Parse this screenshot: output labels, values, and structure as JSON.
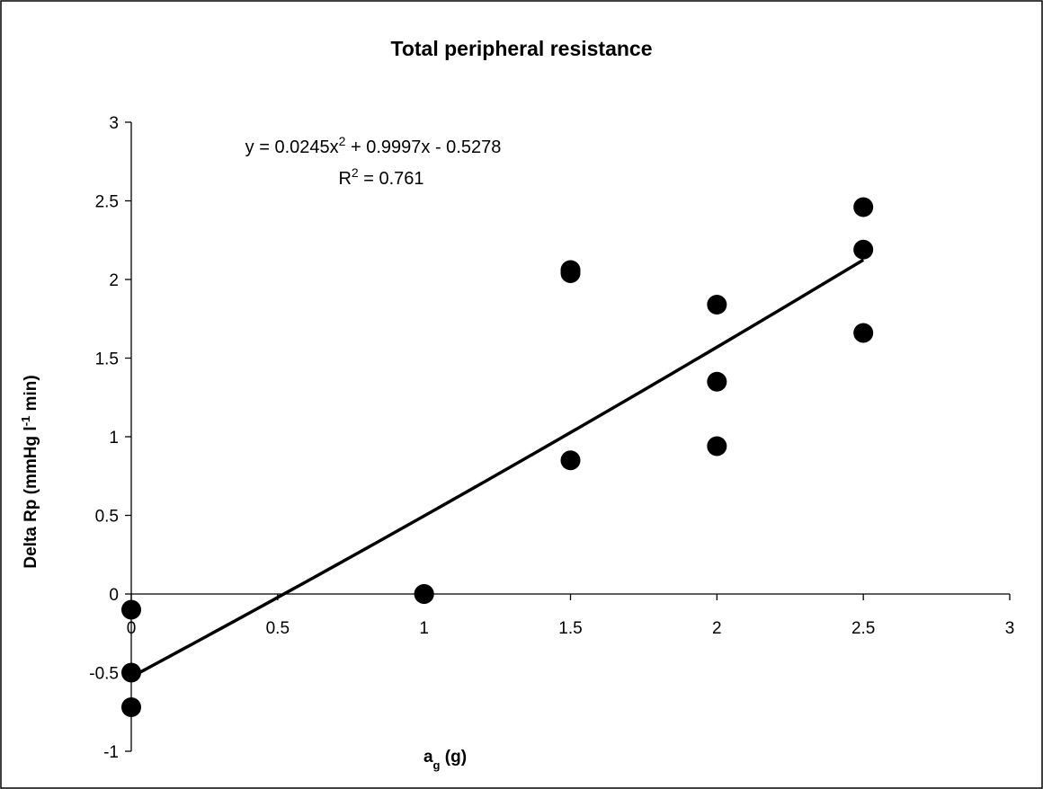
{
  "chart_data": {
    "type": "scatter",
    "title": "Total peripheral resistance",
    "xlabel": {
      "main": "a",
      "sub": "g",
      "rest": " (g)"
    },
    "ylabel": {
      "main": "Delta Rp (mmHg l",
      "sup": "-1",
      "rest": " min)"
    },
    "xlim": [
      0,
      3
    ],
    "ylim": [
      -1,
      3
    ],
    "xticks": [
      {
        "value": 0,
        "label": "0"
      },
      {
        "value": 0.5,
        "label": "0.5"
      },
      {
        "value": 1,
        "label": "1"
      },
      {
        "value": 1.5,
        "label": "1.5"
      },
      {
        "value": 2,
        "label": "2"
      },
      {
        "value": 2.5,
        "label": "2.5"
      },
      {
        "value": 3,
        "label": "3"
      }
    ],
    "yticks": [
      {
        "value": -1,
        "label": "-1"
      },
      {
        "value": -0.5,
        "label": "-0.5"
      },
      {
        "value": 0,
        "label": "0"
      },
      {
        "value": 0.5,
        "label": "0.5"
      },
      {
        "value": 1,
        "label": "1"
      },
      {
        "value": 1.5,
        "label": "1.5"
      },
      {
        "value": 2,
        "label": "2"
      },
      {
        "value": 2.5,
        "label": "2.5"
      },
      {
        "value": 3,
        "label": "3"
      }
    ],
    "grid": false,
    "legend": "none",
    "marker_color": "#000000",
    "points": [
      {
        "x": 0,
        "y": -0.1
      },
      {
        "x": 0,
        "y": -0.5
      },
      {
        "x": 0,
        "y": -0.72
      },
      {
        "x": 1,
        "y": 0
      },
      {
        "x": 1,
        "y": 0
      },
      {
        "x": 1.5,
        "y": 2.06
      },
      {
        "x": 1.5,
        "y": 2.04
      },
      {
        "x": 1.5,
        "y": 0.85
      },
      {
        "x": 2,
        "y": 1.84
      },
      {
        "x": 2,
        "y": 1.35
      },
      {
        "x": 2,
        "y": 0.94
      },
      {
        "x": 2.5,
        "y": 2.46
      },
      {
        "x": 2.5,
        "y": 2.19
      },
      {
        "x": 2.5,
        "y": 1.66
      }
    ],
    "trendline": {
      "type": "polynomial",
      "coefficients": [
        0.0245,
        0.9997,
        -0.5278
      ],
      "x_range": [
        0,
        2.5
      ],
      "equation_parts": [
        "y = 0.0245x",
        "2",
        " + 0.9997x - 0.5278"
      ],
      "r2_parts": [
        "R",
        "2",
        " = 0.761"
      ]
    }
  }
}
